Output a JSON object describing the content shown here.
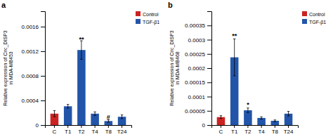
{
  "chart_data": [
    {
      "type": "bar",
      "title": "a",
      "categories": [
        "C",
        "T1",
        "T2",
        "T4",
        "T8",
        "T24"
      ],
      "values": [
        0.000185,
        0.000305,
        0.00122,
        0.000185,
        6.5e-05,
        0.000135
      ],
      "errors": [
        5e-05,
        3e-05,
        0.00015,
        3e-05,
        2e-05,
        3e-05
      ],
      "colors": [
        "#cc2222",
        "#2255aa",
        "#2255aa",
        "#2255aa",
        "#2255aa",
        "#2255aa"
      ],
      "ylabel": "Relative expression of Circ_DISP3\nin MDA-MB453",
      "ylim": [
        0,
        0.00185
      ],
      "yticks": [
        0,
        0.0004,
        0.0008,
        0.0012,
        0.0016
      ],
      "annotations": [
        {
          "text": "**",
          "x": "T2",
          "y": 0.00136
        },
        {
          "text": "#",
          "x": "T8",
          "y": 8.8e-05
        }
      ],
      "legend": "right",
      "legend_items": [
        {
          "name": "Control",
          "color": "#cc2222"
        },
        {
          "name": "TGF-β1",
          "color": "#2255aa"
        }
      ]
    },
    {
      "type": "bar",
      "title": "b",
      "categories": [
        "C",
        "T1",
        "T2",
        "T4",
        "T8",
        "T24"
      ],
      "values": [
        2.8e-05,
        0.000238,
        5.2e-05,
        2.5e-05,
        1.5e-05,
        4e-05
      ],
      "errors": [
        5e-06,
        6.5e-05,
        8e-06,
        4e-06,
        3e-06,
        8e-06
      ],
      "colors": [
        "#cc2222",
        "#2255aa",
        "#2255aa",
        "#2255aa",
        "#2255aa",
        "#2255aa"
      ],
      "ylabel": "Relative expression of Circ_DISP3\nin MDA-MB468",
      "ylim": [
        0,
        0.0004
      ],
      "yticks": [
        0,
        5e-05,
        0.0001,
        0.00015,
        0.0002,
        0.00025,
        0.0003,
        0.00035
      ],
      "annotations": [
        {
          "text": "**",
          "x": "T1",
          "y": 0.000305
        },
        {
          "text": "*",
          "x": "T2",
          "y": 6.3e-05
        }
      ],
      "legend": "right",
      "legend_items": [
        {
          "name": "Control",
          "color": "#cc2222"
        },
        {
          "name": "TGF-β1",
          "color": "#2255aa"
        }
      ]
    }
  ]
}
